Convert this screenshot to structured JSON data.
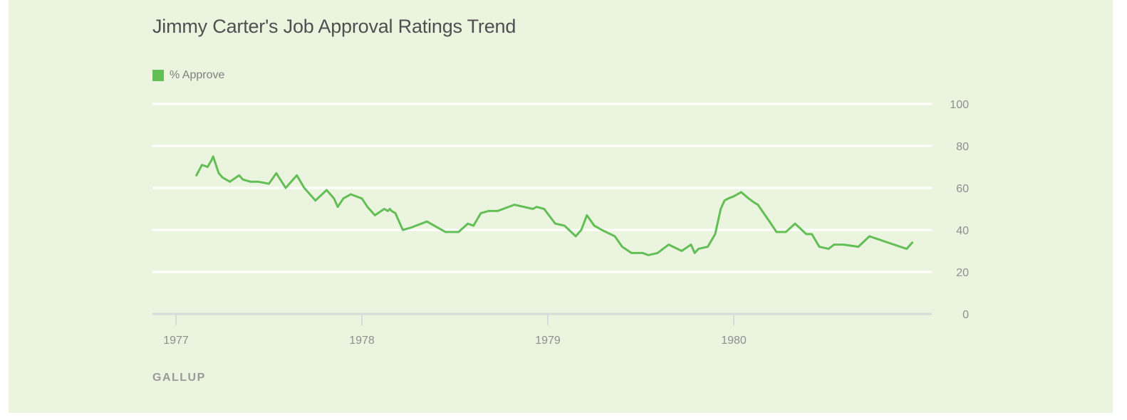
{
  "chart_data": {
    "type": "line",
    "title": "Jimmy Carter's Job Approval Ratings Trend",
    "source": "GALLUP",
    "legend_position": "top-left",
    "grid": true,
    "y_axis_side": "right",
    "ylim": [
      0,
      100
    ],
    "yticks": [
      "0",
      "20",
      "40",
      "60",
      "80",
      "100"
    ],
    "xlim": [
      1977,
      1981
    ],
    "xticks": [
      "1977",
      "1978",
      "1979",
      "1980"
    ],
    "series": [
      {
        "name": "% Approve",
        "color": "#63bf55",
        "x": [
          1977.11,
          1977.14,
          1977.17,
          1977.19,
          1977.2,
          1977.23,
          1977.25,
          1977.29,
          1977.34,
          1977.36,
          1977.4,
          1977.44,
          1977.5,
          1977.54,
          1977.59,
          1977.65,
          1977.69,
          1977.75,
          1977.81,
          1977.84,
          1977.85,
          1977.87,
          1977.9,
          1977.94,
          1978.0,
          1978.03,
          1978.07,
          1978.12,
          1978.14,
          1978.15,
          1978.16,
          1978.18,
          1978.22,
          1978.26,
          1978.29,
          1978.35,
          1978.41,
          1978.45,
          1978.52,
          1978.57,
          1978.6,
          1978.64,
          1978.68,
          1978.73,
          1978.82,
          1978.87,
          1978.92,
          1978.94,
          1978.98,
          1979.04,
          1979.09,
          1979.15,
          1979.18,
          1979.21,
          1979.25,
          1979.29,
          1979.36,
          1979.4,
          1979.45,
          1979.51,
          1979.54,
          1979.59,
          1979.65,
          1979.72,
          1979.77,
          1979.79,
          1979.81,
          1979.86,
          1979.9,
          1979.93,
          1979.95,
          1979.97,
          1980.0,
          1980.04,
          1980.08,
          1980.11,
          1980.13,
          1980.2,
          1980.23,
          1980.28,
          1980.33,
          1980.39,
          1980.42,
          1980.46,
          1980.51,
          1980.54,
          1980.59,
          1980.67,
          1980.73,
          1980.93,
          1980.96
        ],
        "values": [
          66,
          71,
          70,
          73,
          75,
          67,
          65,
          63,
          66,
          64,
          63,
          63,
          62,
          67,
          60,
          66,
          60,
          54,
          59,
          56,
          55,
          51,
          55,
          57,
          55,
          51,
          47,
          50,
          49,
          50,
          49,
          48,
          40,
          41,
          42,
          44,
          41,
          39,
          39,
          43,
          42,
          48,
          49,
          49,
          52,
          51,
          50,
          51,
          50,
          43,
          42,
          37,
          40,
          47,
          42,
          40,
          37,
          32,
          29,
          29,
          28,
          29,
          33,
          30,
          33,
          29,
          31,
          32,
          38,
          50,
          54,
          55,
          56,
          58,
          55,
          53,
          52,
          43,
          39,
          39,
          43,
          38,
          38,
          32,
          31,
          33,
          33,
          32,
          37,
          31,
          34
        ]
      }
    ]
  }
}
